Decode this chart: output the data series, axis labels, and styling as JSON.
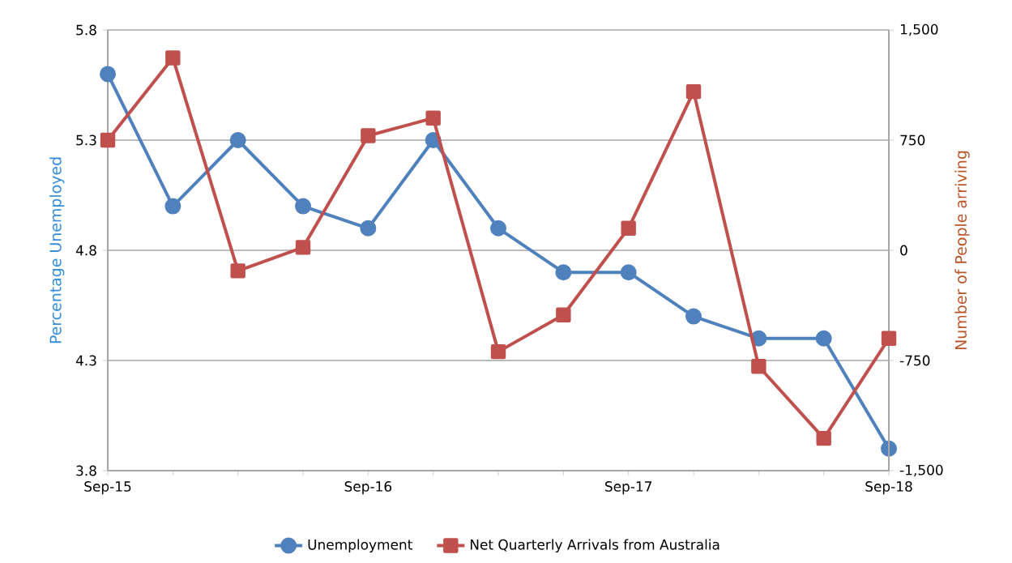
{
  "chart_data": {
    "type": "line",
    "categories": [
      "Sep-15",
      null,
      null,
      null,
      "Sep-16",
      null,
      null,
      null,
      "Sep-17",
      null,
      null,
      null,
      "Sep-18"
    ],
    "series": [
      {
        "name": "Unemployment",
        "color": "#4f81bd",
        "marker": "circle",
        "values": [
          5.6,
          5.0,
          5.3,
          5.0,
          4.9,
          5.3,
          4.9,
          4.7,
          4.7,
          4.5,
          4.4,
          4.4,
          3.9
        ]
      },
      {
        "name": "Net Quarterly Arrivals from Australia",
        "color": "#c0504d",
        "marker": "square",
        "axis": "y2",
        "values": [
          750,
          1310,
          -140,
          20,
          780,
          900,
          -690,
          -440,
          150,
          1080,
          -790,
          -1280,
          -600
        ]
      }
    ],
    "ylabel": "Percentage Unemployed",
    "y2label": "Number of People arriving",
    "ylim": [
      3.8,
      5.8
    ],
    "yticks": [
      3.8,
      4.3,
      4.8,
      5.3,
      5.8
    ],
    "y2lim": [
      -1500,
      1500
    ],
    "y2ticks": [
      {
        "value": -1500,
        "label": "-1,500"
      },
      {
        "value": -750,
        "label": "-750"
      },
      0,
      750,
      {
        "value": 1500,
        "label": "1,500"
      }
    ],
    "grid": "y",
    "legend": "bottom",
    "line_style": "solid"
  }
}
